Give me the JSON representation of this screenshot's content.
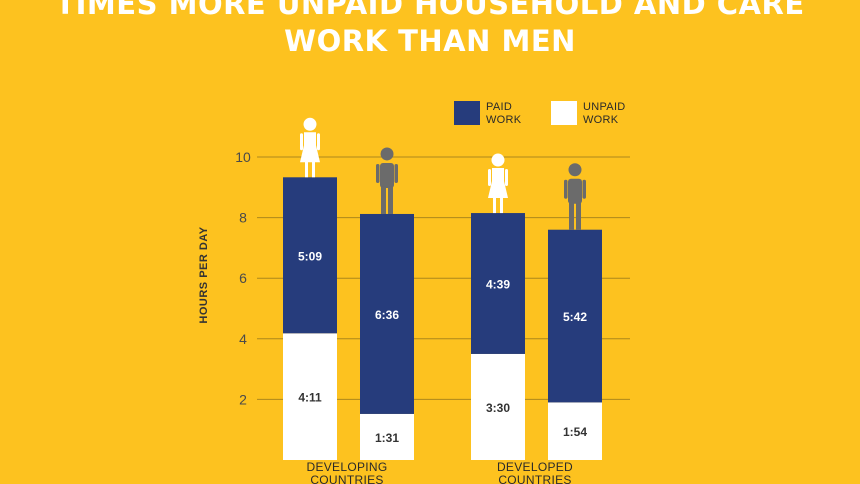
{
  "title": "TIMES MORE UNPAID HOUSEHOLD AND CARE WORK THAN MEN",
  "colors": {
    "background": "#FDC21F",
    "paid": "#263C7C",
    "unpaid": "#FFFFFF",
    "women_icon": "#FFFFFF",
    "men_icon": "#6B6B6B"
  },
  "chart_data": {
    "type": "bar",
    "stacked": true,
    "title": "TIMES MORE UNPAID HOUSEHOLD AND CARE WORK THAN MEN",
    "ylabel": "HOURS PER DAY",
    "xlabel": "",
    "ylim": [
      0,
      10
    ],
    "yticks": [
      2,
      4,
      6,
      8,
      10
    ],
    "grid": true,
    "legend_position": "top-right",
    "groups": [
      {
        "label_lines": [
          "DEVELOPING",
          "COUNTRIES"
        ],
        "bars": [
          {
            "person": "woman-icon",
            "unpaid": 4.18,
            "unpaid_label": "4:11",
            "paid": 5.15,
            "paid_label": "5:09"
          },
          {
            "person": "man-icon",
            "unpaid": 1.52,
            "unpaid_label": "1:31",
            "paid": 6.6,
            "paid_label": "6:36"
          }
        ]
      },
      {
        "label_lines": [
          "DEVELOPED",
          "COUNTRIES"
        ],
        "bars": [
          {
            "person": "woman-icon",
            "unpaid": 3.5,
            "unpaid_label": "3:30",
            "paid": 4.65,
            "paid_label": "4:39"
          },
          {
            "person": "man-icon",
            "unpaid": 1.9,
            "unpaid_label": "1:54",
            "paid": 5.7,
            "paid_label": "5:42"
          }
        ]
      }
    ],
    "legend": [
      {
        "label_lines": [
          "PAID",
          "WORK"
        ],
        "color": "#263C7C"
      },
      {
        "label_lines": [
          "UNPAID",
          "WORK"
        ],
        "color": "#FFFFFF"
      }
    ]
  }
}
